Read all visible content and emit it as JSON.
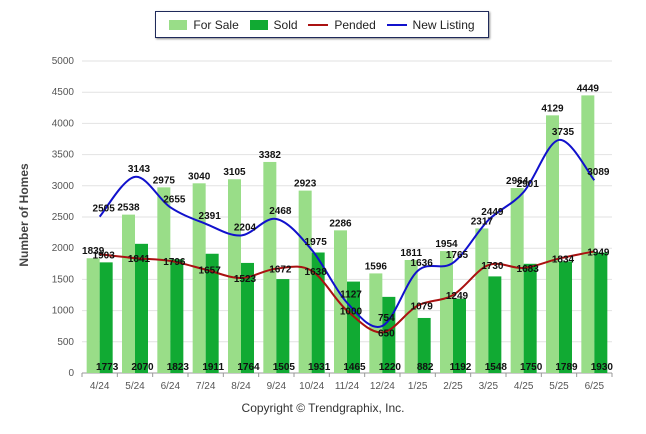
{
  "legend": {
    "for_sale": "For Sale",
    "sold": "Sold",
    "pended": "Pended",
    "new_listing": "New Listing"
  },
  "footer": {
    "copyright": "Copyright © Trendgraphix, Inc."
  },
  "colors": {
    "for_sale": "#99dd88",
    "sold": "#11aa33",
    "pended": "#aa1111",
    "new_listing": "#1111cc",
    "grid": "#e2e2e2",
    "axis_text": "#555555"
  },
  "chart_data": {
    "type": "bar",
    "title": "",
    "xlabel": "",
    "ylabel": "Number of Homes",
    "ylim": [
      0,
      5000
    ],
    "yticks": [
      0,
      500,
      1000,
      1500,
      2000,
      2500,
      3000,
      3500,
      4000,
      4500,
      5000
    ],
    "grid": true,
    "legend_position": "top-center",
    "categories": [
      "4/24",
      "5/24",
      "6/24",
      "7/24",
      "8/24",
      "9/24",
      "10/24",
      "11/24",
      "12/24",
      "1/25",
      "2/25",
      "3/25",
      "4/25",
      "5/25",
      "6/25"
    ],
    "series": [
      {
        "name": "For Sale",
        "kind": "bar",
        "values": [
          1839,
          2538,
          2975,
          3040,
          3105,
          3382,
          2923,
          2286,
          1596,
          1811,
          1954,
          2317,
          2964,
          4129,
          4449
        ]
      },
      {
        "name": "Sold",
        "kind": "bar",
        "values": [
          1773,
          2070,
          1823,
          1911,
          1764,
          1505,
          1931,
          1465,
          1220,
          882,
          1192,
          1548,
          1750,
          1789,
          1930
        ]
      },
      {
        "name": "Pended",
        "kind": "line",
        "values": [
          1903,
          1841,
          1796,
          1657,
          1523,
          1672,
          1638,
          1000,
          650,
          1079,
          1249,
          1730,
          1683,
          1834,
          1949
        ]
      },
      {
        "name": "New Listing",
        "kind": "line",
        "values": [
          2505,
          3143,
          2655,
          2391,
          2204,
          2468,
          1975,
          1127,
          754,
          1636,
          1765,
          2449,
          2901,
          3735,
          3089
        ]
      }
    ]
  }
}
